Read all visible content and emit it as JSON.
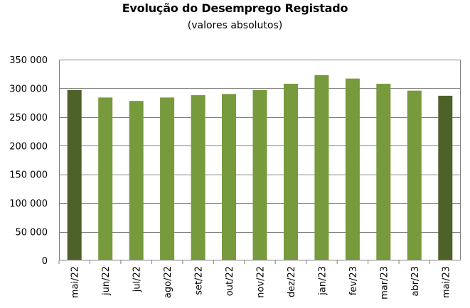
{
  "chart_data": {
    "type": "bar",
    "title": "Evolução do Desemprego Registado",
    "subtitle": "(valores absolutos)",
    "categories": [
      "mai/22",
      "jun/22",
      "jul/22",
      "ago/22",
      "set/22",
      "out/22",
      "nov/22",
      "dez/22",
      "jan/23",
      "fev/23",
      "mar/23",
      "abr/23",
      "mai/23"
    ],
    "values": [
      297000,
      284000,
      278000,
      284000,
      288000,
      290000,
      297000,
      308000,
      323000,
      317000,
      308000,
      296000,
      287000
    ],
    "highlighted_categories": [
      "mai/22",
      "mai/23"
    ],
    "ylim": [
      0,
      350000
    ],
    "y_ticks": [
      0,
      50000,
      100000,
      150000,
      200000,
      250000,
      300000,
      350000
    ],
    "y_tick_labels": [
      "0",
      "50 000",
      "100 000",
      "150 000",
      "200 000",
      "250 000",
      "300 000",
      "350 000"
    ],
    "xlabel": "",
    "ylabel": "",
    "grid": true,
    "legend": "none",
    "colors": {
      "bar": "#779a3c",
      "bar_highlight": "#4d6128",
      "grid": "#7f7f7f",
      "axis": "#7f7f7f"
    }
  }
}
